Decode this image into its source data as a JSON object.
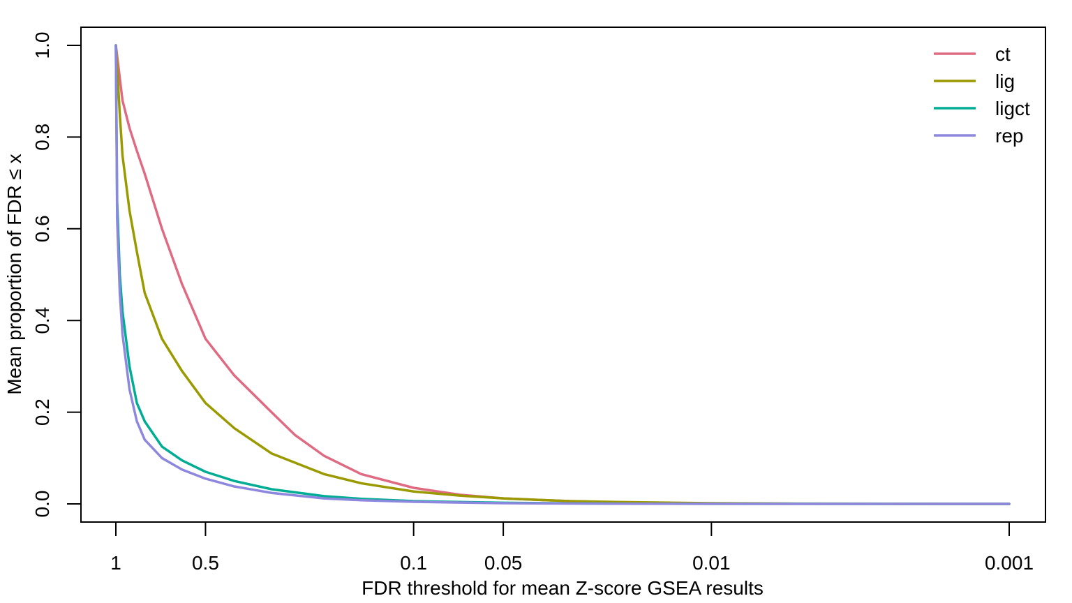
{
  "chart_data": {
    "type": "line",
    "xlabel": "FDR threshold for mean Z-score GSEA results",
    "ylabel": "Mean proportion of FDR ≤ x",
    "x_scale": "log10-reversed",
    "xlim": [
      1,
      0.001
    ],
    "ylim": [
      0,
      1
    ],
    "x_ticks": [
      {
        "value": 1,
        "label": "1"
      },
      {
        "value": 0.5,
        "label": "0.5"
      },
      {
        "value": 0.1,
        "label": "0.1"
      },
      {
        "value": 0.05,
        "label": "0.05"
      },
      {
        "value": 0.01,
        "label": "0.01"
      },
      {
        "value": 0.001,
        "label": "0.001"
      }
    ],
    "y_ticks": [
      {
        "value": 0,
        "label": "0.0"
      },
      {
        "value": 0.2,
        "label": "0.2"
      },
      {
        "value": 0.4,
        "label": "0.4"
      },
      {
        "value": 0.6,
        "label": "0.6"
      },
      {
        "value": 0.8,
        "label": "0.8"
      },
      {
        "value": 1,
        "label": "1.0"
      }
    ],
    "legend_position": "top-right",
    "series": [
      {
        "name": "ct",
        "color": "#DF6B83",
        "x": [
          1,
          0.95,
          0.9,
          0.85,
          0.8,
          0.7,
          0.6,
          0.5,
          0.4,
          0.3,
          0.25,
          0.2,
          0.15,
          0.1,
          0.07,
          0.05,
          0.03,
          0.02,
          0.01,
          0.005,
          0.001
        ],
        "y": [
          1.0,
          0.88,
          0.82,
          0.77,
          0.72,
          0.6,
          0.48,
          0.36,
          0.28,
          0.2,
          0.15,
          0.105,
          0.065,
          0.035,
          0.02,
          0.012,
          0.006,
          0.003,
          0.001,
          0.0003,
          0.0
        ]
      },
      {
        "name": "lig",
        "color": "#9A9A00",
        "x": [
          1,
          0.97,
          0.95,
          0.9,
          0.85,
          0.8,
          0.7,
          0.6,
          0.5,
          0.4,
          0.3,
          0.2,
          0.15,
          0.1,
          0.07,
          0.05,
          0.03,
          0.02,
          0.01,
          0.005,
          0.001
        ],
        "y": [
          1.0,
          0.85,
          0.76,
          0.64,
          0.55,
          0.46,
          0.36,
          0.29,
          0.22,
          0.165,
          0.11,
          0.065,
          0.045,
          0.027,
          0.018,
          0.012,
          0.006,
          0.004,
          0.0015,
          0.0005,
          0.0
        ]
      },
      {
        "name": "ligct",
        "color": "#00AC94",
        "x": [
          1,
          0.99,
          0.97,
          0.95,
          0.9,
          0.85,
          0.8,
          0.7,
          0.6,
          0.5,
          0.4,
          0.3,
          0.2,
          0.15,
          0.1,
          0.05,
          0.03,
          0.02,
          0.01,
          0.001
        ],
        "y": [
          1.0,
          0.66,
          0.5,
          0.42,
          0.3,
          0.22,
          0.18,
          0.125,
          0.095,
          0.07,
          0.05,
          0.032,
          0.017,
          0.011,
          0.006,
          0.0025,
          0.0012,
          0.0006,
          0.0002,
          0.0
        ]
      },
      {
        "name": "rep",
        "color": "#8E87DE",
        "x": [
          1,
          0.99,
          0.97,
          0.95,
          0.9,
          0.85,
          0.8,
          0.7,
          0.6,
          0.5,
          0.4,
          0.3,
          0.2,
          0.15,
          0.1,
          0.05,
          0.03,
          0.02,
          0.01,
          0.001
        ],
        "y": [
          1.0,
          0.62,
          0.46,
          0.37,
          0.25,
          0.18,
          0.14,
          0.1,
          0.075,
          0.055,
          0.038,
          0.024,
          0.012,
          0.008,
          0.0045,
          0.0015,
          0.0007,
          0.0003,
          0.0001,
          0.0
        ]
      }
    ]
  }
}
